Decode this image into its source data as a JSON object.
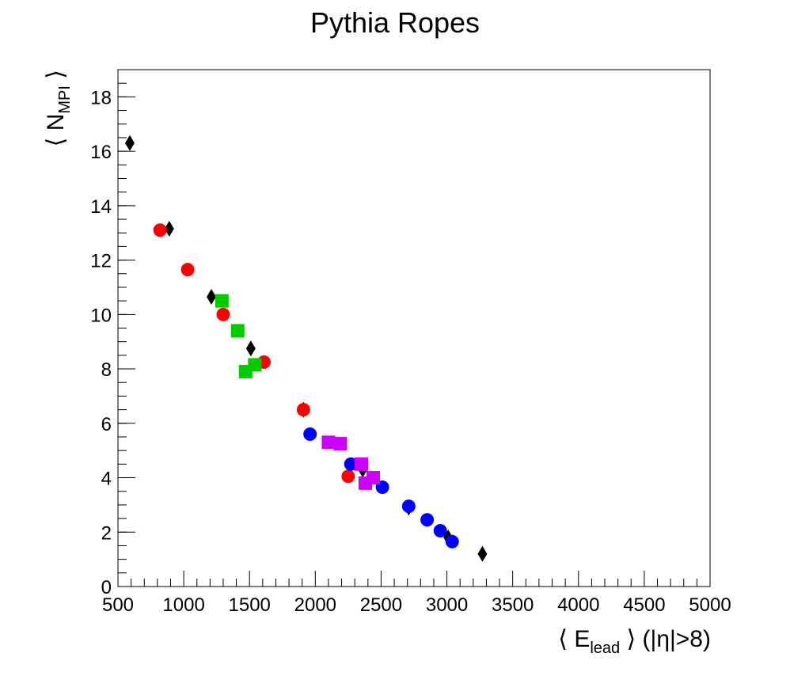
{
  "chart_data": {
    "type": "scatter",
    "title": "Pythia Ropes",
    "xlabel": {
      "open": "⟨ E",
      "sub": "lead",
      "close": " ⟩ (|η|>8)"
    },
    "ylabel": {
      "open": "⟨ N",
      "sub": "MPI",
      "close": " ⟩"
    },
    "xlim": [
      500,
      5000
    ],
    "ylim": [
      0,
      19
    ],
    "x_ticks": [
      500,
      1000,
      1500,
      2000,
      2500,
      3000,
      3500,
      4000,
      4500,
      5000
    ],
    "y_ticks": [
      0,
      2,
      4,
      6,
      8,
      10,
      12,
      14,
      16,
      18
    ],
    "grid": false,
    "series": [
      {
        "marker": "diamond",
        "color": "#000000",
        "points": [
          [
            590,
            16.3
          ],
          [
            890,
            13.15
          ],
          [
            1210,
            10.65
          ],
          [
            1510,
            8.75
          ],
          [
            1910,
            6.5
          ],
          [
            2360,
            4.3
          ],
          [
            2710,
            2.9
          ],
          [
            3010,
            1.8
          ],
          [
            3270,
            1.2
          ]
        ]
      },
      {
        "marker": "circle",
        "color": "#ff0000",
        "points": [
          [
            820,
            13.1
          ],
          [
            1030,
            11.65
          ],
          [
            1300,
            10.0
          ],
          [
            1610,
            8.25
          ],
          [
            1910,
            6.5
          ],
          [
            2250,
            4.05
          ]
        ]
      },
      {
        "marker": "square",
        "color": "#00cc00",
        "points": [
          [
            1290,
            10.5
          ],
          [
            1410,
            9.4
          ],
          [
            1470,
            7.9
          ],
          [
            1540,
            8.15
          ]
        ]
      },
      {
        "marker": "circle",
        "color": "#0000ff",
        "points": [
          [
            1960,
            5.6
          ],
          [
            2270,
            4.5
          ],
          [
            2510,
            3.65
          ],
          [
            2710,
            2.95
          ],
          [
            2850,
            2.45
          ],
          [
            2950,
            2.05
          ],
          [
            3040,
            1.65
          ]
        ]
      },
      {
        "marker": "square",
        "color": "#cc00ff",
        "points": [
          [
            2100,
            5.3
          ],
          [
            2190,
            5.25
          ],
          [
            2350,
            4.5
          ],
          [
            2380,
            3.8
          ],
          [
            2440,
            4.0
          ]
        ]
      }
    ]
  }
}
